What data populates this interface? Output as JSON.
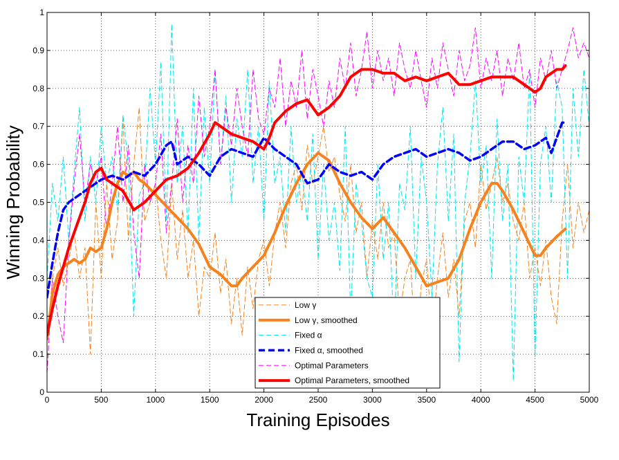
{
  "chart_data": {
    "type": "line",
    "title": "",
    "xlabel": "Training Episodes",
    "ylabel": "Winning Probability",
    "xlim": [
      0,
      5000
    ],
    "ylim": [
      0,
      1
    ],
    "xticks": [
      0,
      500,
      1000,
      1500,
      2000,
      2500,
      3000,
      3500,
      4000,
      4500,
      5000
    ],
    "yticks": [
      0,
      0.1,
      0.2,
      0.3,
      0.4,
      0.5,
      0.6,
      0.7,
      0.8,
      0.9,
      1
    ],
    "xtick_labels": [
      "0",
      "500",
      "1000",
      "1500",
      "2000",
      "2500",
      "3000",
      "3500",
      "4000",
      "4500",
      "5000"
    ],
    "ytick_labels": [
      "0",
      "0.1",
      "0.2",
      "0.3",
      "0.4",
      "0.5",
      "0.6",
      "0.7",
      "0.8",
      "0.9",
      "1"
    ],
    "grid": true,
    "legend_position": "bottom-center",
    "series": [
      {
        "name": "Low γ",
        "color": "#f5821f",
        "style": "dashed-thin",
        "x": [
          0,
          50,
          100,
          150,
          200,
          250,
          300,
          350,
          400,
          450,
          500,
          550,
          600,
          650,
          700,
          750,
          800,
          850,
          900,
          950,
          1000,
          1050,
          1100,
          1150,
          1200,
          1250,
          1300,
          1350,
          1400,
          1450,
          1500,
          1550,
          1600,
          1650,
          1700,
          1750,
          1800,
          1850,
          1900,
          1950,
          2000,
          2050,
          2100,
          2150,
          2200,
          2250,
          2300,
          2350,
          2400,
          2450,
          2500,
          2550,
          2600,
          2650,
          2700,
          2750,
          2800,
          2850,
          2900,
          2950,
          3000,
          3050,
          3100,
          3150,
          3200,
          3250,
          3300,
          3350,
          3400,
          3450,
          3500,
          3550,
          3600,
          3650,
          3700,
          3750,
          3800,
          3850,
          3900,
          3950,
          4000,
          4050,
          4100,
          4150,
          4200,
          4250,
          4300,
          4350,
          4400,
          4450,
          4500,
          4550,
          4600,
          4650,
          4700,
          4750,
          4800,
          4850,
          4900,
          4950,
          5000
        ],
        "values": [
          0.14,
          0.3,
          0.38,
          0.28,
          0.35,
          0.42,
          0.3,
          0.38,
          0.1,
          0.5,
          0.3,
          0.55,
          0.35,
          0.45,
          0.72,
          0.4,
          0.6,
          0.75,
          0.45,
          0.5,
          0.55,
          0.4,
          0.3,
          0.55,
          0.35,
          0.48,
          0.3,
          0.4,
          0.2,
          0.33,
          0.3,
          0.42,
          0.26,
          0.35,
          0.18,
          0.3,
          0.15,
          0.33,
          0.22,
          0.35,
          0.4,
          0.28,
          0.42,
          0.5,
          0.38,
          0.55,
          0.6,
          0.48,
          0.65,
          0.55,
          0.62,
          0.7,
          0.58,
          0.62,
          0.52,
          0.45,
          0.6,
          0.42,
          0.5,
          0.3,
          0.45,
          0.35,
          0.5,
          0.38,
          0.42,
          0.2,
          0.3,
          0.35,
          0.1,
          0.28,
          0.35,
          0.15,
          0.3,
          0.42,
          0.25,
          0.35,
          0.2,
          0.45,
          0.5,
          0.38,
          0.6,
          0.48,
          0.55,
          0.62,
          0.5,
          0.55,
          0.45,
          0.4,
          0.5,
          0.3,
          0.38,
          0.28,
          0.4,
          0.25,
          0.18,
          0.45,
          0.6,
          0.38,
          0.5,
          0.42,
          0.48
        ]
      },
      {
        "name": "Low γ, smoothed",
        "color": "#f5821f",
        "style": "solid-thick",
        "x": [
          0,
          50,
          100,
          150,
          200,
          250,
          300,
          350,
          400,
          450,
          500,
          550,
          600,
          650,
          700,
          750,
          800,
          850,
          900,
          1000,
          1100,
          1200,
          1300,
          1400,
          1500,
          1600,
          1700,
          1750,
          1800,
          1900,
          2000,
          2100,
          2200,
          2300,
          2400,
          2500,
          2600,
          2700,
          2800,
          2900,
          3000,
          3100,
          3200,
          3300,
          3400,
          3500,
          3600,
          3700,
          3800,
          3900,
          4000,
          4100,
          4150,
          4200,
          4300,
          4400,
          4500,
          4550,
          4600,
          4700,
          4780
        ],
        "values": [
          0.14,
          0.26,
          0.31,
          0.33,
          0.34,
          0.35,
          0.34,
          0.35,
          0.38,
          0.37,
          0.38,
          0.43,
          0.5,
          0.55,
          0.58,
          0.57,
          0.58,
          0.56,
          0.55,
          0.52,
          0.49,
          0.46,
          0.43,
          0.39,
          0.33,
          0.31,
          0.28,
          0.28,
          0.3,
          0.33,
          0.36,
          0.42,
          0.49,
          0.55,
          0.6,
          0.63,
          0.61,
          0.55,
          0.5,
          0.46,
          0.43,
          0.46,
          0.42,
          0.38,
          0.33,
          0.28,
          0.29,
          0.3,
          0.35,
          0.43,
          0.5,
          0.55,
          0.55,
          0.53,
          0.48,
          0.42,
          0.36,
          0.36,
          0.38,
          0.41,
          0.43
        ]
      },
      {
        "name": "Fixed α",
        "color": "#00e5ee",
        "style": "dashed-thin",
        "x": [
          0,
          50,
          100,
          150,
          200,
          250,
          300,
          350,
          400,
          450,
          500,
          550,
          600,
          650,
          700,
          750,
          800,
          850,
          900,
          950,
          1000,
          1050,
          1100,
          1150,
          1200,
          1250,
          1300,
          1350,
          1400,
          1450,
          1500,
          1550,
          1600,
          1650,
          1700,
          1750,
          1800,
          1850,
          1900,
          1950,
          2000,
          2050,
          2100,
          2150,
          2200,
          2250,
          2300,
          2350,
          2400,
          2450,
          2500,
          2550,
          2600,
          2650,
          2700,
          2750,
          2800,
          2850,
          2900,
          2950,
          3000,
          3050,
          3100,
          3150,
          3200,
          3250,
          3300,
          3350,
          3400,
          3450,
          3500,
          3550,
          3600,
          3650,
          3700,
          3750,
          3800,
          3850,
          3900,
          3950,
          4000,
          4050,
          4100,
          4150,
          4200,
          4250,
          4300,
          4350,
          4400,
          4450,
          4500,
          4550,
          4600,
          4650,
          4700,
          4750,
          4800,
          4850,
          4900,
          4950,
          5000
        ],
        "values": [
          0.3,
          0.55,
          0.45,
          0.62,
          0.4,
          0.58,
          0.75,
          0.45,
          0.62,
          0.5,
          0.7,
          0.55,
          0.62,
          0.48,
          0.73,
          0.6,
          0.2,
          0.52,
          0.55,
          0.8,
          0.6,
          0.87,
          0.45,
          0.97,
          0.55,
          0.7,
          0.42,
          0.8,
          0.4,
          0.75,
          0.55,
          0.85,
          0.6,
          0.78,
          0.5,
          0.72,
          0.62,
          0.85,
          0.55,
          0.7,
          0.45,
          0.82,
          0.55,
          0.62,
          0.42,
          0.7,
          0.5,
          0.58,
          0.45,
          0.68,
          0.35,
          0.6,
          0.4,
          0.5,
          0.32,
          0.7,
          0.2,
          0.55,
          0.45,
          0.3,
          0.25,
          0.6,
          0.35,
          0.5,
          0.15,
          0.55,
          0.48,
          0.7,
          0.3,
          0.62,
          0.5,
          0.25,
          0.6,
          0.75,
          0.45,
          0.68,
          0.08,
          0.5,
          0.62,
          0.82,
          0.55,
          0.65,
          0.3,
          0.72,
          0.45,
          0.6,
          0.03,
          0.62,
          0.5,
          0.85,
          0.09,
          0.6,
          0.7,
          0.5,
          0.82,
          0.75,
          0.3,
          0.8,
          0.62,
          0.85,
          0.7
        ]
      },
      {
        "name": "Fixed α, smoothed",
        "color": "#0000ff",
        "style": "dashed-thick",
        "x": [
          0,
          50,
          100,
          150,
          200,
          250,
          300,
          350,
          400,
          450,
          500,
          600,
          700,
          800,
          900,
          1000,
          1100,
          1150,
          1200,
          1300,
          1400,
          1500,
          1600,
          1700,
          1800,
          1900,
          2000,
          2100,
          2200,
          2300,
          2400,
          2500,
          2600,
          2700,
          2800,
          2900,
          3000,
          3100,
          3200,
          3300,
          3400,
          3500,
          3600,
          3700,
          3800,
          3900,
          4000,
          4100,
          4200,
          4300,
          4400,
          4500,
          4600,
          4650,
          4700,
          4750,
          4780
        ],
        "values": [
          0.25,
          0.34,
          0.42,
          0.48,
          0.5,
          0.51,
          0.52,
          0.53,
          0.54,
          0.55,
          0.56,
          0.57,
          0.56,
          0.58,
          0.57,
          0.6,
          0.65,
          0.66,
          0.6,
          0.62,
          0.6,
          0.57,
          0.62,
          0.64,
          0.63,
          0.62,
          0.67,
          0.64,
          0.62,
          0.6,
          0.55,
          0.56,
          0.6,
          0.58,
          0.57,
          0.58,
          0.56,
          0.6,
          0.62,
          0.63,
          0.64,
          0.62,
          0.63,
          0.64,
          0.63,
          0.61,
          0.62,
          0.64,
          0.66,
          0.66,
          0.64,
          0.65,
          0.67,
          0.63,
          0.67,
          0.71,
          0.71
        ]
      },
      {
        "name": "Optimal Parameters",
        "color": "#ff00ff",
        "style": "dashed-thin",
        "x": [
          0,
          50,
          100,
          150,
          200,
          250,
          300,
          350,
          400,
          450,
          500,
          550,
          600,
          650,
          700,
          750,
          800,
          850,
          900,
          950,
          1000,
          1050,
          1100,
          1150,
          1200,
          1250,
          1300,
          1350,
          1400,
          1450,
          1500,
          1550,
          1600,
          1650,
          1700,
          1750,
          1800,
          1850,
          1900,
          1950,
          2000,
          2050,
          2100,
          2150,
          2200,
          2250,
          2300,
          2350,
          2400,
          2450,
          2500,
          2550,
          2600,
          2650,
          2700,
          2750,
          2800,
          2850,
          2900,
          2950,
          3000,
          3050,
          3100,
          3150,
          3200,
          3250,
          3300,
          3350,
          3400,
          3450,
          3500,
          3550,
          3600,
          3650,
          3700,
          3750,
          3800,
          3850,
          3900,
          3950,
          4000,
          4050,
          4100,
          4150,
          4200,
          4250,
          4300,
          4350,
          4400,
          4450,
          4500,
          4550,
          4600,
          4650,
          4700,
          4750,
          4800,
          4850,
          4900,
          4950,
          5000
        ],
        "values": [
          0.05,
          0.3,
          0.2,
          0.13,
          0.4,
          0.55,
          0.68,
          0.5,
          0.6,
          0.55,
          0.62,
          0.42,
          0.55,
          0.7,
          0.5,
          0.65,
          0.42,
          0.3,
          0.6,
          0.5,
          0.55,
          0.68,
          0.42,
          0.55,
          0.72,
          0.5,
          0.65,
          0.55,
          0.78,
          0.62,
          0.7,
          0.85,
          0.6,
          0.75,
          0.65,
          0.8,
          0.7,
          0.62,
          0.85,
          0.72,
          0.68,
          0.8,
          0.75,
          0.88,
          0.7,
          0.82,
          0.75,
          0.9,
          0.72,
          0.85,
          0.78,
          0.7,
          0.82,
          0.75,
          0.88,
          0.8,
          0.92,
          0.78,
          0.85,
          0.95,
          0.8,
          0.9,
          0.82,
          0.88,
          0.78,
          0.92,
          0.85,
          0.8,
          0.9,
          0.82,
          0.75,
          0.88,
          0.8,
          0.92,
          0.85,
          0.78,
          0.9,
          0.82,
          0.86,
          0.96,
          0.8,
          0.88,
          0.82,
          0.9,
          0.78,
          0.88,
          0.82,
          0.92,
          0.8,
          0.85,
          0.75,
          0.88,
          0.82,
          0.9,
          0.8,
          0.85,
          0.9,
          0.96,
          0.88,
          0.92,
          0.88
        ]
      },
      {
        "name": "Optimal Parameters, smoothed",
        "color": "#ff0000",
        "style": "solid-thick",
        "x": [
          0,
          50,
          100,
          150,
          200,
          250,
          300,
          350,
          400,
          450,
          500,
          550,
          600,
          700,
          800,
          850,
          900,
          1000,
          1100,
          1200,
          1300,
          1400,
          1500,
          1550,
          1600,
          1700,
          1800,
          1900,
          2000,
          2050,
          2100,
          2200,
          2300,
          2400,
          2450,
          2500,
          2600,
          2700,
          2800,
          2900,
          3000,
          3100,
          3200,
          3300,
          3400,
          3500,
          3600,
          3700,
          3800,
          3900,
          4000,
          4100,
          4200,
          4300,
          4400,
          4500,
          4550,
          4600,
          4700,
          4750,
          4780
        ],
        "values": [
          0.15,
          0.22,
          0.28,
          0.33,
          0.38,
          0.42,
          0.46,
          0.5,
          0.55,
          0.58,
          0.59,
          0.56,
          0.55,
          0.53,
          0.48,
          0.49,
          0.5,
          0.53,
          0.56,
          0.57,
          0.59,
          0.63,
          0.68,
          0.71,
          0.7,
          0.68,
          0.67,
          0.66,
          0.64,
          0.67,
          0.71,
          0.74,
          0.76,
          0.77,
          0.75,
          0.73,
          0.75,
          0.78,
          0.83,
          0.85,
          0.85,
          0.84,
          0.84,
          0.82,
          0.83,
          0.82,
          0.83,
          0.84,
          0.81,
          0.81,
          0.82,
          0.83,
          0.83,
          0.83,
          0.81,
          0.79,
          0.8,
          0.83,
          0.85,
          0.85,
          0.86
        ]
      }
    ]
  }
}
